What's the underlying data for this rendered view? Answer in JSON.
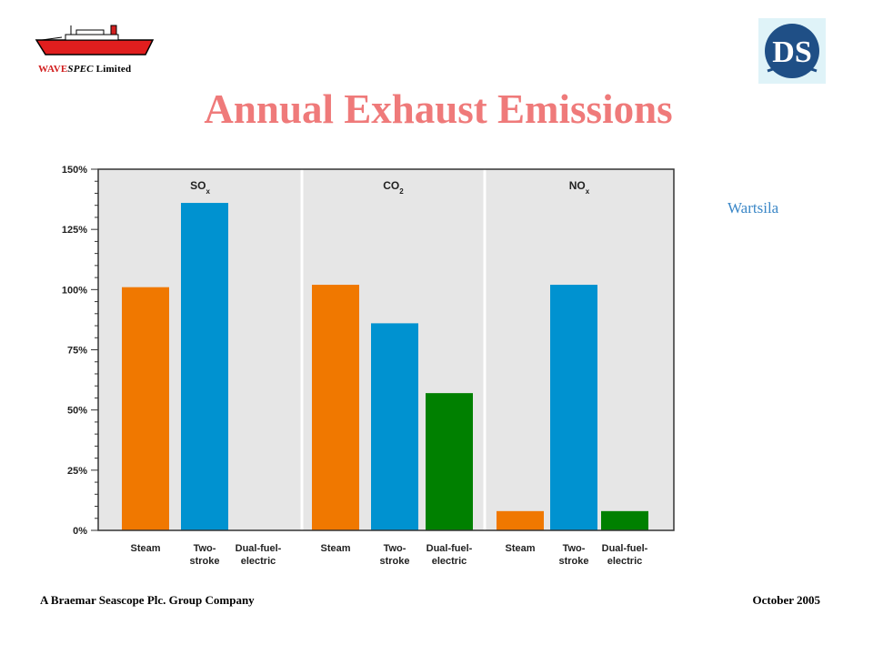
{
  "header": {
    "company_wave": "WAVE",
    "company_spec": "SPEC",
    "company_suffix": "Limited",
    "title": "Annual Exhaust Emissions",
    "source": "Wartsila"
  },
  "footer": {
    "left": "A Braemar Seascope Plc. Group Company",
    "right": "October 2005"
  },
  "logos": {
    "ship": "ship-logo-icon",
    "ds": "ds-monogram-logo",
    "ds_text": "DS"
  },
  "colors": {
    "title": "#ef7a7a",
    "source": "#3b87c7",
    "steam": "#f07800",
    "two_stroke": "#0092d0",
    "dual_fuel": "#008000",
    "plot_bg": "#e6e6e6"
  },
  "chart_data": {
    "type": "bar",
    "title": "",
    "xlabel": "",
    "ylabel": "",
    "ylim": [
      0,
      150
    ],
    "y_ticks": [
      "0%",
      "25%",
      "50%",
      "75%",
      "100%",
      "125%",
      "150%"
    ],
    "grid": false,
    "panels": [
      {
        "label": "SO",
        "subscript": "x",
        "categories": [
          "Steam",
          "Two-stroke",
          "Dual-fuel-electric"
        ],
        "category_lines": [
          [
            "Steam"
          ],
          [
            "Two-",
            "stroke"
          ],
          [
            "Dual-fuel-",
            "electric"
          ]
        ],
        "values": [
          101,
          136,
          null
        ]
      },
      {
        "label": "CO",
        "subscript": "2",
        "categories": [
          "Steam",
          "Two-stroke",
          "Dual-fuel-electric"
        ],
        "category_lines": [
          [
            "Steam"
          ],
          [
            "Two-",
            "stroke"
          ],
          [
            "Dual-fuel-",
            "electric"
          ]
        ],
        "values": [
          102,
          86,
          57
        ]
      },
      {
        "label": "NO",
        "subscript": "x",
        "categories": [
          "Steam",
          "Two-stroke",
          "Dual-fuel-electric"
        ],
        "category_lines": [
          [
            "Steam"
          ],
          [
            "Two-",
            "stroke"
          ],
          [
            "Dual-fuel-",
            "electric"
          ]
        ],
        "values": [
          8,
          102,
          8
        ]
      }
    ]
  }
}
